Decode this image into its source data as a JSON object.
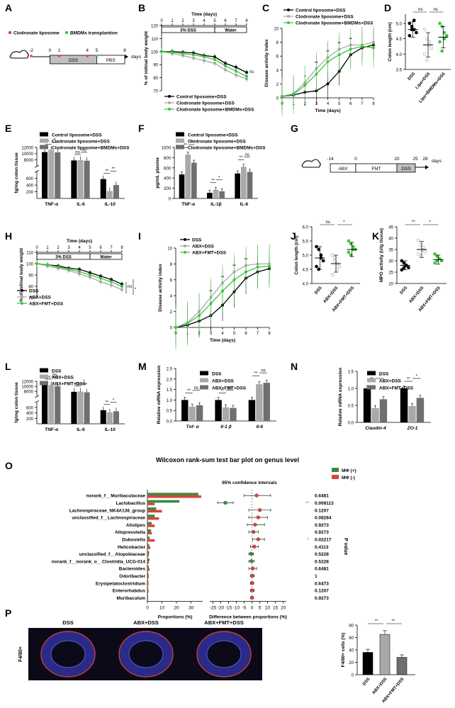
{
  "panel_letters": [
    "A",
    "B",
    "C",
    "D",
    "E",
    "F",
    "G",
    "H",
    "I",
    "J",
    "K",
    "L",
    "M",
    "N",
    "O",
    "P"
  ],
  "colors": {
    "black": "#000000",
    "gray": "#a9a9a9",
    "darkgray": "#6f6f6f",
    "green": "#3cc63c",
    "red": "#d9443a",
    "dsspink": "#f4b8b8",
    "boxgray": "#c0c0c0"
  },
  "chart_data": [
    {
      "id": "A",
      "type": "diagram",
      "legend": [
        {
          "label": "Clodronate liposome",
          "color": "#d9443a"
        },
        {
          "label": "BMDMs transplantion",
          "color": "#3cc63c"
        }
      ],
      "timeline_ticks": [
        "-2",
        "0",
        "1",
        "4",
        "5",
        "8"
      ],
      "unit": "days",
      "phases": [
        "DSS",
        "PBS"
      ]
    },
    {
      "id": "B",
      "type": "line",
      "title": "Time (days)",
      "ylabel": "% of initinal body weight",
      "xticks": [
        "0",
        "1",
        "2",
        "3",
        "4",
        "5",
        "6",
        "7",
        "8"
      ],
      "yticks": [
        "70",
        "80",
        "90",
        "100",
        "110",
        "120"
      ],
      "ylim": [
        70,
        120
      ],
      "phases": [
        "3% DSS",
        "Water"
      ],
      "x": [
        0,
        1,
        2,
        3,
        4,
        5,
        6,
        7,
        8
      ],
      "series": [
        {
          "name": "Control liposome+DSS",
          "color": "#000000",
          "values": [
            100,
            100,
            99.5,
            99,
            97,
            96,
            91,
            88,
            84
          ]
        },
        {
          "name": "Clodronate liposome+DSS",
          "color": "#a9a9a9",
          "values": [
            100,
            98.5,
            97,
            95,
            93,
            91,
            86,
            82,
            79
          ]
        },
        {
          "name": "Clodronate liposome+BMDMs+DSS",
          "color": "#3cc63c",
          "values": [
            100,
            99.5,
            98.5,
            97.5,
            96,
            94,
            89,
            85,
            81
          ]
        }
      ],
      "annotation": "ns"
    },
    {
      "id": "C",
      "type": "line",
      "xlabel": "Time (days)",
      "ylabel": "Disease activity index",
      "xticks": [
        "0",
        "1",
        "2",
        "3",
        "4",
        "5",
        "6",
        "7",
        "8"
      ],
      "yticks": [
        "0",
        "2",
        "4",
        "6",
        "8",
        "10"
      ],
      "ylim": [
        0,
        10
      ],
      "x": [
        0,
        1,
        2,
        3,
        4,
        5,
        6,
        7,
        8
      ],
      "series": [
        {
          "name": "Control liposome+DSS",
          "color": "#000000",
          "values": [
            0.2,
            0.4,
            0.8,
            1.0,
            2.0,
            3.8,
            6.2,
            7.2,
            7.6
          ]
        },
        {
          "name": "Clodronate liposome+DSS",
          "color": "#a9a9a9",
          "values": [
            0.2,
            0.6,
            2.2,
            4.2,
            5.8,
            7.0,
            7.6,
            7.6,
            8.0
          ]
        },
        {
          "name": "Clodronate liposome+BMDMs+DSS",
          "color": "#3cc63c",
          "values": [
            0.2,
            0.5,
            1.8,
            3.4,
            5.2,
            6.2,
            7.0,
            7.4,
            7.2
          ]
        }
      ],
      "sig": [
        "*",
        "**",
        "**",
        "**",
        "**"
      ]
    },
    {
      "id": "D",
      "type": "scatter",
      "ylabel": "Colon length (cm)",
      "categories": [
        "DSS",
        "Lipo+DSS",
        "Lipo+BMDMs+DSS"
      ],
      "yticks": [
        "3.5",
        "4.0",
        "4.5",
        "5.0"
      ],
      "ylim": [
        3.5,
        5.3
      ],
      "groups": [
        {
          "mean": 4.8,
          "sd": 0.25,
          "points": [
            5.0,
            4.9,
            4.8,
            4.7,
            4.6,
            4.8,
            5.1
          ]
        },
        {
          "mean": 4.3,
          "sd": 0.4,
          "points": [
            4.8,
            4.5,
            4.3,
            4.2,
            4.0,
            3.8,
            4.4
          ]
        },
        {
          "mean": 4.55,
          "sd": 0.35,
          "points": [
            5.0,
            4.9,
            4.7,
            4.6,
            4.4,
            4.1,
            4.5
          ]
        }
      ],
      "sig": [
        "ns",
        "ns"
      ]
    },
    {
      "id": "E",
      "type": "bar",
      "ylabel": "fg/mg colon tissue",
      "categories": [
        "TNF-α",
        "IL-6",
        "IL-10"
      ],
      "yticks": [
        "200",
        "400",
        "600",
        "8000",
        "10000",
        "12000"
      ],
      "series": [
        {
          "name": "Control liposome+DSS",
          "color": "#000000",
          "values": [
            10500,
            7800,
            580
          ]
        },
        {
          "name": "Clodronate liposome+DSS",
          "color": "#a9a9a9",
          "values": [
            11200,
            7900,
            220
          ]
        },
        {
          "name": "Clodronate liposome+BMDMs+DSS",
          "color": "#6f6f6f",
          "values": [
            10400,
            7700,
            400
          ]
        }
      ],
      "sig": [
        "*",
        "*",
        "ns",
        "ns",
        "**",
        "**"
      ]
    },
    {
      "id": "F",
      "type": "bar",
      "ylabel": "pg/mL plasma",
      "categories": [
        "TNF-α",
        "IL-1β",
        "IL-6"
      ],
      "yticks": [
        "0",
        "200",
        "400",
        "600",
        "800",
        "1000"
      ],
      "ylim": [
        0,
        1000
      ],
      "series": [
        {
          "name": "Control liposome+DSS",
          "color": "#000000",
          "values": [
            470,
            110,
            490
          ]
        },
        {
          "name": "Clodronate liposome+DSS",
          "color": "#a9a9a9",
          "values": [
            860,
            170,
            620
          ]
        },
        {
          "name": "Clodronate liposome+BMDMs+DSS",
          "color": "#6f6f6f",
          "values": [
            700,
            140,
            520
          ]
        }
      ],
      "sig": [
        "**",
        "**",
        "**",
        "*",
        "**",
        "ns"
      ]
    },
    {
      "id": "G",
      "type": "diagram",
      "timeline_ticks": [
        "-14",
        "0",
        "20",
        "25",
        "28"
      ],
      "unit": "days",
      "phases": [
        "ABX",
        "FMT",
        "DSS"
      ]
    },
    {
      "id": "H",
      "type": "line",
      "title": "Time (days)",
      "ylabel": "% of initinal body weight",
      "xticks": [
        "0",
        "1",
        "2",
        "3",
        "4",
        "5",
        "6",
        "7",
        "8"
      ],
      "yticks": [
        "70",
        "80",
        "90",
        "100",
        "110"
      ],
      "ylim": [
        70,
        110
      ],
      "phases": [
        "3% DSS",
        "Water"
      ],
      "x": [
        0,
        1,
        2,
        3,
        4,
        5,
        6,
        7,
        8
      ],
      "series": [
        {
          "name": "DSS",
          "color": "#000000",
          "values": [
            100,
            99,
            98,
            96,
            95,
            92,
            89,
            86,
            82
          ]
        },
        {
          "name": "ABX+DSS",
          "color": "#a9a9a9",
          "values": [
            100,
            98,
            96,
            94,
            91,
            88,
            84,
            81,
            77
          ]
        },
        {
          "name": "ABX+FMT+DSS",
          "color": "#3cc63c",
          "values": [
            100,
            99,
            97,
            95,
            93,
            90,
            87,
            84,
            80
          ]
        }
      ],
      "sig": [
        "ns",
        "*"
      ]
    },
    {
      "id": "I",
      "type": "line",
      "xlabel": "Time (days)",
      "ylabel": "Disease activity index",
      "xticks": [
        "0",
        "1",
        "2",
        "3",
        "4",
        "5",
        "6",
        "7",
        "8"
      ],
      "yticks": [
        "0",
        "2",
        "4",
        "6",
        "8",
        "10"
      ],
      "ylim": [
        0,
        10
      ],
      "x": [
        0,
        1,
        2,
        3,
        4,
        5,
        6,
        7,
        8
      ],
      "series": [
        {
          "name": "DSS",
          "color": "#000000",
          "values": [
            0,
            0.3,
            0.8,
            1.5,
            2.8,
            4.5,
            6.2,
            7.0,
            7.4
          ]
        },
        {
          "name": "ABX+DSS",
          "color": "#a9a9a9",
          "values": [
            0,
            0.6,
            2.0,
            3.8,
            5.6,
            7.0,
            7.8,
            8.0,
            8.0
          ]
        },
        {
          "name": "ABX+FMT+DSS",
          "color": "#3cc63c",
          "values": [
            0,
            0.5,
            1.5,
            3.0,
            4.6,
            6.0,
            7.0,
            7.6,
            7.7
          ]
        }
      ],
      "sig": [
        "**",
        "**",
        "**",
        "**"
      ]
    },
    {
      "id": "J",
      "type": "scatter",
      "ylabel": "Colon length (cm)",
      "categories": [
        "DSS",
        "ABX+DSS",
        "ABX+FMT+DSS"
      ],
      "yticks": [
        "4.0",
        "4.5",
        "5.0",
        "5.5",
        "6.0"
      ],
      "ylim": [
        4.0,
        6.0
      ],
      "groups": [
        {
          "mean": 4.9,
          "sd": 0.4,
          "points": [
            5.3,
            5.2,
            5.0,
            4.8,
            4.6,
            4.5,
            4.9
          ]
        },
        {
          "mean": 4.7,
          "sd": 0.3,
          "points": [
            5.0,
            4.9,
            4.7,
            4.6,
            4.3,
            4.8,
            4.5
          ]
        },
        {
          "mean": 5.2,
          "sd": 0.25,
          "points": [
            5.5,
            5.4,
            5.3,
            5.2,
            5.1,
            5.0,
            5.2
          ]
        }
      ],
      "sig": [
        "ns",
        "*"
      ]
    },
    {
      "id": "K",
      "type": "scatter",
      "ylabel": "MPO activity (U/g tissue)",
      "categories": [
        "DSS",
        "ABX+DSS",
        "ABX+FMT+DSS"
      ],
      "yticks": [
        "20",
        "25",
        "30",
        "35",
        "40",
        "45"
      ],
      "ylim": [
        20,
        45
      ],
      "groups": [
        {
          "mean": 28,
          "sd": 2,
          "points": [
            30,
            29,
            28,
            27,
            26,
            27,
            28
          ]
        },
        {
          "mean": 35,
          "sd": 3.5,
          "points": [
            39,
            37,
            35,
            34,
            33,
            32,
            36
          ]
        },
        {
          "mean": 30.5,
          "sd": 2,
          "points": [
            33,
            32,
            31,
            30,
            29,
            30,
            31
          ]
        }
      ],
      "sig": [
        "**",
        "*"
      ]
    },
    {
      "id": "L",
      "type": "bar",
      "ylabel": "fg/mg colon tissue",
      "categories": [
        "TNF-α",
        "IL-6",
        "IL-10"
      ],
      "yticks": [
        "200",
        "400",
        "600",
        "8000",
        "10000",
        "12000"
      ],
      "series": [
        {
          "name": "DSS",
          "color": "#000000",
          "values": [
            10600,
            7800,
            500
          ]
        },
        {
          "name": "ABX+DSS",
          "color": "#a9a9a9",
          "values": [
            10500,
            7900,
            420
          ]
        },
        {
          "name": "ABX+FMT+DSS",
          "color": "#6f6f6f",
          "values": [
            10000,
            7600,
            460
          ]
        }
      ],
      "sig": [
        "ns",
        "ns",
        "ns",
        "*",
        "**",
        "*"
      ]
    },
    {
      "id": "M",
      "type": "bar",
      "ylabel": "Relative mRNA expression",
      "categories": [
        "Tnf- α",
        "Il-1 β",
        "Il-6"
      ],
      "yticks": [
        "0.0",
        "0.5",
        "1.0",
        "1.5",
        "2.0",
        "2.5"
      ],
      "ylim": [
        0,
        2.5
      ],
      "series": [
        {
          "name": "DSS",
          "color": "#000000",
          "values": [
            1.0,
            1.0,
            1.0
          ]
        },
        {
          "name": "ABX+DSS",
          "color": "#a9a9a9",
          "values": [
            0.68,
            0.65,
            1.75
          ]
        },
        {
          "name": "ABX+FMT+DSS",
          "color": "#6f6f6f",
          "values": [
            0.75,
            0.62,
            1.82
          ]
        }
      ],
      "sig": [
        "**",
        "ns",
        "**",
        "ns",
        "**",
        "ns"
      ]
    },
    {
      "id": "N",
      "type": "bar",
      "ylabel": "Relative mRNA expression",
      "categories": [
        "Claudin-4",
        "ZO-1"
      ],
      "yticks": [
        "0.0",
        "0.5",
        "1.0",
        "1.5"
      ],
      "ylim": [
        0,
        1.5
      ],
      "series": [
        {
          "name": "DSS",
          "color": "#000000",
          "values": [
            1.0,
            1.0
          ]
        },
        {
          "name": "ABX+DSS",
          "color": "#a9a9a9",
          "values": [
            0.42,
            0.48
          ]
        },
        {
          "name": "ABX+FMT+DSS",
          "color": "#6f6f6f",
          "values": [
            0.68,
            0.72
          ]
        }
      ],
      "sig": [
        "**",
        "*",
        "**",
        "*"
      ]
    },
    {
      "id": "O",
      "type": "bar",
      "title": "Wilcoxon rank-sum test bar plot on genus level",
      "ci_title": "95% confidence intervals",
      "xlabel_left": "Proportions (%)",
      "xlabel_right": "Difference between proportions (%)",
      "ylabel_right": "P value",
      "legend": [
        {
          "name": "MΦ (+)",
          "color": "#3a8a3a"
        },
        {
          "name": "MΦ (-)",
          "color": "#d9443a"
        }
      ],
      "left_xticks": [
        "0",
        "10",
        "20",
        "30"
      ],
      "right_xticks": [
        "-25",
        "-20",
        "-15",
        "-10",
        "-5",
        "0",
        "5",
        "10",
        "15",
        "20"
      ],
      "categories": [
        "norank_f__Muribaculaceae",
        "Lactobacillus",
        "Lachnospiraceae_NK4A136_group",
        "unclassified_f__Lachnospiraceae",
        "Alistipes",
        "Alloprevotella",
        "Dubosiella",
        "Helicobacter",
        "unclassified_f__Atopobiaceae",
        "norank_f__norank_o__Clostridia_UCG-014",
        "Bacteroides",
        "Odoribacter",
        "Erysipelatoclostridium",
        "Enterorhabdus",
        "Muribaculum"
      ],
      "mphi_plus": [
        35,
        22,
        6,
        5,
        3,
        2.5,
        1.5,
        1.2,
        1.2,
        1.5,
        1.0,
        0.8,
        0.7,
        0.6,
        0.5
      ],
      "mphi_minus": [
        37,
        5,
        10,
        8,
        5,
        3,
        5,
        2,
        1,
        1,
        1.5,
        1,
        0.8,
        0.8,
        0.5
      ],
      "difference": [
        3,
        -17,
        5,
        4,
        2,
        1,
        4,
        1.5,
        -0.5,
        -0.3,
        0.5,
        0.2,
        0.1,
        0.2,
        0.1
      ],
      "ci_low": [
        -5,
        -22,
        -2,
        -2,
        -3,
        -2,
        0.5,
        -1,
        -2,
        -2,
        -2,
        -1,
        -1,
        -1,
        -1
      ],
      "ci_high": [
        12,
        -12,
        12,
        10,
        8,
        4,
        8,
        4,
        1,
        1.5,
        3,
        1.5,
        1.2,
        1.4,
        1
      ],
      "p_values": [
        "0.6481",
        "0.008113",
        "0.1207",
        "0.08284",
        "0.9273",
        "0.9273",
        "0.02217",
        "0.4113",
        "0.5228",
        "0.5228",
        "0.6481",
        "1",
        "0.6473",
        "0.1207",
        "0.9273"
      ],
      "p_marks": [
        "",
        "**",
        "",
        "",
        "",
        "",
        "*",
        "",
        "",
        "",
        "",
        "",
        "",
        "",
        ""
      ]
    },
    {
      "id": "P",
      "type": "bar",
      "image_labels": [
        "DSS",
        "ABX+DSS",
        "ABX+FMT+DSS"
      ],
      "row_label": "F4/80+",
      "ylabel": "F4/80+ cells (%)",
      "categories": [
        "DSS",
        "ABX+DSS",
        "ABX+FMT+DSS"
      ],
      "yticks": [
        "0",
        "20",
        "40",
        "60",
        "80"
      ],
      "ylim": [
        0,
        80
      ],
      "values": [
        36,
        65,
        28
      ],
      "errors": [
        5,
        6,
        4
      ],
      "colors": [
        "#000000",
        "#a9a9a9",
        "#6f6f6f"
      ],
      "sig": [
        "**",
        "**"
      ]
    }
  ]
}
